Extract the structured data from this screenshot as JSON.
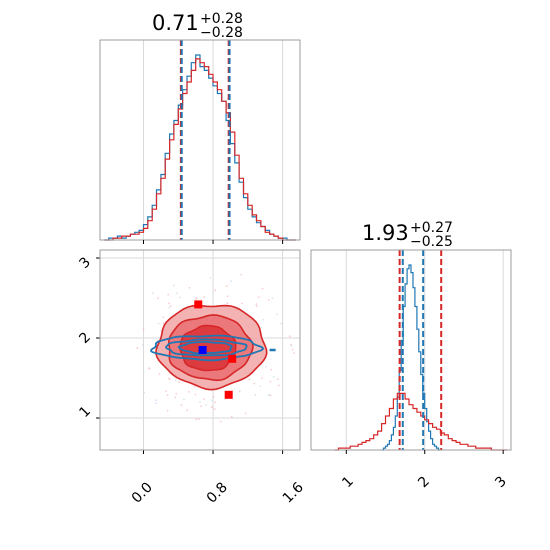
{
  "colors": {
    "blue": "#1f77b4",
    "red": "#d62728",
    "grid": "#d9d9d9",
    "frame": "#9e9e9e",
    "marker_red": "#ff0000",
    "marker_blue": "#0000ff"
  },
  "chart_data": [
    {
      "type": "histogram",
      "panel": "top-left",
      "title": {
        "value": "0.71",
        "upper": "+0.28",
        "lower": "−0.28"
      },
      "xlim": [
        -0.5,
        1.8
      ],
      "grid": true,
      "vlines": [
        {
          "x": 0.43,
          "color": "red",
          "style": "dashed"
        },
        {
          "x": 0.44,
          "color": "blue",
          "style": "dashed"
        },
        {
          "x": 0.98,
          "color": "red",
          "style": "dashed"
        },
        {
          "x": 0.99,
          "color": "blue",
          "style": "dashed"
        }
      ],
      "series": [
        {
          "color": "blue",
          "bin_start": -0.45,
          "bin_width": 0.05,
          "values": [
            0,
            1,
            1,
            2,
            1,
            2,
            3,
            4,
            5,
            8,
            12,
            18,
            26,
            34,
            45,
            55,
            62,
            70,
            78,
            85,
            92,
            96,
            90,
            88,
            84,
            80,
            76,
            72,
            62,
            50,
            40,
            30,
            22,
            16,
            12,
            9,
            7,
            5,
            3,
            2,
            1,
            1,
            0,
            0
          ]
        },
        {
          "color": "red",
          "bin_start": -0.45,
          "bin_width": 0.05,
          "values": [
            0,
            0,
            1,
            1,
            2,
            2,
            3,
            3,
            4,
            6,
            10,
            16,
            24,
            32,
            42,
            52,
            60,
            68,
            76,
            82,
            88,
            94,
            92,
            90,
            86,
            82,
            78,
            72,
            66,
            56,
            44,
            32,
            24,
            18,
            13,
            10,
            7,
            4,
            3,
            2,
            1,
            0,
            0,
            0
          ]
        }
      ]
    },
    {
      "type": "contour",
      "panel": "bottom-left",
      "xlim": [
        -0.5,
        1.8
      ],
      "ylim": [
        0.6,
        3.1
      ],
      "xticks": [
        "0.0",
        "0.8",
        "1.6"
      ],
      "yticks": [
        "1",
        "2",
        "3"
      ],
      "grid": true,
      "levels_red": [
        {
          "cx": 0.78,
          "cy": 1.9,
          "rx": 0.62,
          "ry": 0.52
        },
        {
          "cx": 0.76,
          "cy": 1.88,
          "rx": 0.48,
          "ry": 0.4
        },
        {
          "cx": 0.74,
          "cy": 1.87,
          "rx": 0.32,
          "ry": 0.28
        }
      ],
      "levels_blue": [
        {
          "cx": 0.72,
          "cy": 1.88,
          "rx": 0.62,
          "ry": 0.15
        },
        {
          "cx": 0.72,
          "cy": 1.88,
          "rx": 0.46,
          "ry": 0.1
        },
        {
          "cx": 0.72,
          "cy": 1.88,
          "rx": 0.3,
          "ry": 0.07
        }
      ],
      "markers": [
        {
          "x": 0.63,
          "y": 2.42,
          "color": "red"
        },
        {
          "x": 0.68,
          "y": 1.85,
          "color": "blue"
        },
        {
          "x": 1.02,
          "y": 1.74,
          "color": "red"
        },
        {
          "x": 0.98,
          "y": 1.29,
          "color": "red"
        }
      ]
    },
    {
      "type": "histogram",
      "panel": "bottom-right",
      "title": {
        "value": "1.93",
        "upper": "+0.27",
        "lower": "−0.25"
      },
      "xlim": [
        0.55,
        3.1
      ],
      "xticks": [
        "1",
        "2",
        "3"
      ],
      "grid": true,
      "vlines": [
        {
          "x": 1.68,
          "color": "red",
          "style": "dashed"
        },
        {
          "x": 1.72,
          "color": "blue",
          "style": "dashed"
        },
        {
          "x": 1.98,
          "color": "blue",
          "style": "dashed"
        },
        {
          "x": 2.21,
          "color": "red",
          "style": "dashed"
        }
      ],
      "series": [
        {
          "color": "blue",
          "bin_start": 1.45,
          "bin_width": 0.025,
          "values": [
            0,
            1,
            2,
            3,
            5,
            8,
            12,
            18,
            28,
            42,
            58,
            76,
            88,
            96,
            98,
            94,
            86,
            76,
            64,
            52,
            40,
            30,
            22,
            15,
            10,
            6,
            3,
            2,
            1,
            0
          ]
        },
        {
          "color": "red",
          "bin_start": 0.85,
          "bin_width": 0.05,
          "values": [
            0,
            1,
            1,
            1,
            2,
            2,
            3,
            4,
            5,
            6,
            8,
            10,
            14,
            18,
            22,
            27,
            30,
            30,
            27,
            24,
            22,
            20,
            18,
            16,
            14,
            12,
            11,
            9,
            8,
            6,
            5,
            4,
            3,
            3,
            2,
            2,
            1,
            1,
            1,
            1,
            0,
            0,
            0,
            0
          ]
        }
      ]
    }
  ]
}
